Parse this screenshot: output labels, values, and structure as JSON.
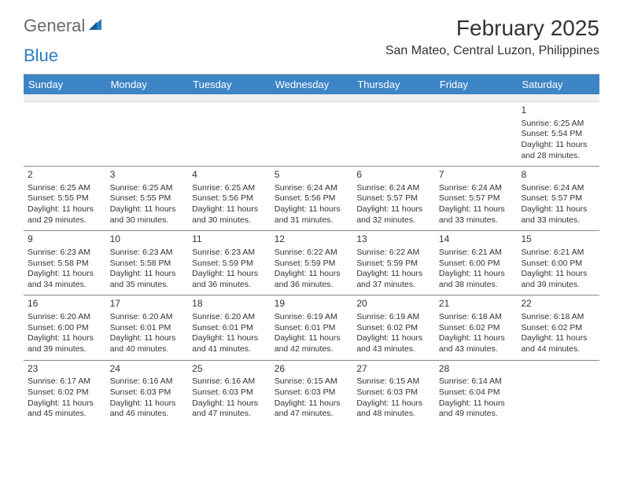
{
  "brand": {
    "word1": "General",
    "word2": "Blue",
    "color1": "#6a6a6a",
    "color2": "#2a7ec4"
  },
  "title": "February 2025",
  "subtitle": "San Mateo, Central Luzon, Philippines",
  "header_bg": "#3d85c6",
  "header_fg": "#ffffff",
  "rule_color": "#888888",
  "blank_bg": "#efefef",
  "days": [
    "Sunday",
    "Monday",
    "Tuesday",
    "Wednesday",
    "Thursday",
    "Friday",
    "Saturday"
  ],
  "weeks": [
    [
      null,
      null,
      null,
      null,
      null,
      null,
      {
        "n": "1",
        "sunrise": "6:25 AM",
        "sunset": "5:54 PM",
        "daylight": "11 hours and 28 minutes."
      }
    ],
    [
      {
        "n": "2",
        "sunrise": "6:25 AM",
        "sunset": "5:55 PM",
        "daylight": "11 hours and 29 minutes."
      },
      {
        "n": "3",
        "sunrise": "6:25 AM",
        "sunset": "5:55 PM",
        "daylight": "11 hours and 30 minutes."
      },
      {
        "n": "4",
        "sunrise": "6:25 AM",
        "sunset": "5:56 PM",
        "daylight": "11 hours and 30 minutes."
      },
      {
        "n": "5",
        "sunrise": "6:24 AM",
        "sunset": "5:56 PM",
        "daylight": "11 hours and 31 minutes."
      },
      {
        "n": "6",
        "sunrise": "6:24 AM",
        "sunset": "5:57 PM",
        "daylight": "11 hours and 32 minutes."
      },
      {
        "n": "7",
        "sunrise": "6:24 AM",
        "sunset": "5:57 PM",
        "daylight": "11 hours and 33 minutes."
      },
      {
        "n": "8",
        "sunrise": "6:24 AM",
        "sunset": "5:57 PM",
        "daylight": "11 hours and 33 minutes."
      }
    ],
    [
      {
        "n": "9",
        "sunrise": "6:23 AM",
        "sunset": "5:58 PM",
        "daylight": "11 hours and 34 minutes."
      },
      {
        "n": "10",
        "sunrise": "6:23 AM",
        "sunset": "5:58 PM",
        "daylight": "11 hours and 35 minutes."
      },
      {
        "n": "11",
        "sunrise": "6:23 AM",
        "sunset": "5:59 PM",
        "daylight": "11 hours and 36 minutes."
      },
      {
        "n": "12",
        "sunrise": "6:22 AM",
        "sunset": "5:59 PM",
        "daylight": "11 hours and 36 minutes."
      },
      {
        "n": "13",
        "sunrise": "6:22 AM",
        "sunset": "5:59 PM",
        "daylight": "11 hours and 37 minutes."
      },
      {
        "n": "14",
        "sunrise": "6:21 AM",
        "sunset": "6:00 PM",
        "daylight": "11 hours and 38 minutes."
      },
      {
        "n": "15",
        "sunrise": "6:21 AM",
        "sunset": "6:00 PM",
        "daylight": "11 hours and 39 minutes."
      }
    ],
    [
      {
        "n": "16",
        "sunrise": "6:20 AM",
        "sunset": "6:00 PM",
        "daylight": "11 hours and 39 minutes."
      },
      {
        "n": "17",
        "sunrise": "6:20 AM",
        "sunset": "6:01 PM",
        "daylight": "11 hours and 40 minutes."
      },
      {
        "n": "18",
        "sunrise": "6:20 AM",
        "sunset": "6:01 PM",
        "daylight": "11 hours and 41 minutes."
      },
      {
        "n": "19",
        "sunrise": "6:19 AM",
        "sunset": "6:01 PM",
        "daylight": "11 hours and 42 minutes."
      },
      {
        "n": "20",
        "sunrise": "6:19 AM",
        "sunset": "6:02 PM",
        "daylight": "11 hours and 43 minutes."
      },
      {
        "n": "21",
        "sunrise": "6:18 AM",
        "sunset": "6:02 PM",
        "daylight": "11 hours and 43 minutes."
      },
      {
        "n": "22",
        "sunrise": "6:18 AM",
        "sunset": "6:02 PM",
        "daylight": "11 hours and 44 minutes."
      }
    ],
    [
      {
        "n": "23",
        "sunrise": "6:17 AM",
        "sunset": "6:02 PM",
        "daylight": "11 hours and 45 minutes."
      },
      {
        "n": "24",
        "sunrise": "6:16 AM",
        "sunset": "6:03 PM",
        "daylight": "11 hours and 46 minutes."
      },
      {
        "n": "25",
        "sunrise": "6:16 AM",
        "sunset": "6:03 PM",
        "daylight": "11 hours and 47 minutes."
      },
      {
        "n": "26",
        "sunrise": "6:15 AM",
        "sunset": "6:03 PM",
        "daylight": "11 hours and 47 minutes."
      },
      {
        "n": "27",
        "sunrise": "6:15 AM",
        "sunset": "6:03 PM",
        "daylight": "11 hours and 48 minutes."
      },
      {
        "n": "28",
        "sunrise": "6:14 AM",
        "sunset": "6:04 PM",
        "daylight": "11 hours and 49 minutes."
      },
      null
    ]
  ],
  "labels": {
    "sunrise": "Sunrise:",
    "sunset": "Sunset:",
    "daylight": "Daylight:"
  }
}
